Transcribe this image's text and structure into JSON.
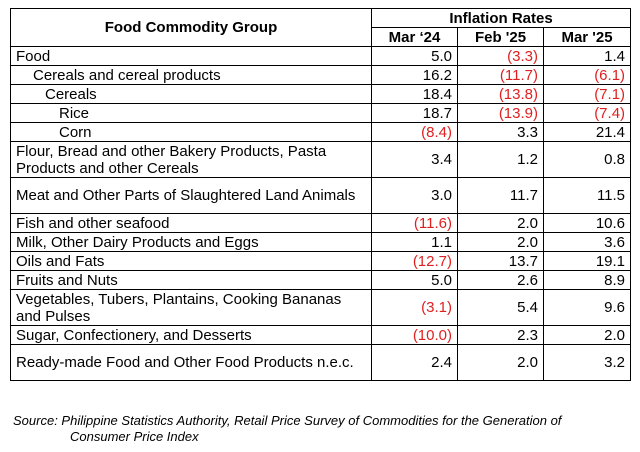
{
  "table": {
    "header": {
      "group_label": "Food Commodity Group",
      "rates_label": "Inflation Rates",
      "periods": [
        "Mar ‘24",
        "Feb '25",
        "Mar '25"
      ]
    },
    "rows": [
      {
        "label": "Food",
        "indent": 0,
        "values": [
          "5.0",
          "(3.3)",
          "1.4"
        ],
        "negative": [
          false,
          true,
          false
        ]
      },
      {
        "label": "Cereals and cereal products",
        "indent": 1,
        "values": [
          "16.2",
          "(11.7)",
          "(6.1)"
        ],
        "negative": [
          false,
          true,
          true
        ]
      },
      {
        "label": "Cereals",
        "indent": 2,
        "values": [
          "18.4",
          "(13.8)",
          "(7.1)"
        ],
        "negative": [
          false,
          true,
          true
        ]
      },
      {
        "label": "Rice",
        "indent": 3,
        "values": [
          "18.7",
          "(13.9)",
          "(7.4)"
        ],
        "negative": [
          false,
          true,
          true
        ]
      },
      {
        "label": "Corn",
        "indent": 3,
        "values": [
          "(8.4)",
          "3.3",
          "21.4"
        ],
        "negative": [
          true,
          false,
          false
        ]
      },
      {
        "label": "Flour, Bread and other Bakery Products, Pasta Products and other Cereals",
        "indent": 0,
        "tall": true,
        "values": [
          "3.4",
          "1.2",
          "0.8"
        ],
        "negative": [
          false,
          false,
          false
        ]
      },
      {
        "label": "Meat and Other Parts of Slaughtered Land Animals",
        "indent": 0,
        "tall": true,
        "values": [
          "3.0",
          "11.7",
          "11.5"
        ],
        "negative": [
          false,
          false,
          false
        ]
      },
      {
        "label": "Fish and other seafood",
        "indent": 0,
        "values": [
          "(11.6)",
          "2.0",
          "10.6"
        ],
        "negative": [
          true,
          false,
          false
        ]
      },
      {
        "label": "Milk, Other Dairy Products and Eggs",
        "indent": 0,
        "values": [
          "1.1",
          "2.0",
          "3.6"
        ],
        "negative": [
          false,
          false,
          false
        ]
      },
      {
        "label": "Oils and Fats",
        "indent": 0,
        "values": [
          "(12.7)",
          "13.7",
          "19.1"
        ],
        "negative": [
          true,
          false,
          false
        ]
      },
      {
        "label": "Fruits and Nuts",
        "indent": 0,
        "values": [
          "5.0",
          "2.6",
          "8.9"
        ],
        "negative": [
          false,
          false,
          false
        ]
      },
      {
        "label": "Vegetables, Tubers, Plantains, Cooking Bananas and Pulses",
        "indent": 0,
        "tall": true,
        "values": [
          "(3.1)",
          "5.4",
          "9.6"
        ],
        "negative": [
          true,
          false,
          false
        ]
      },
      {
        "label": "Sugar, Confectionery, and Desserts",
        "indent": 0,
        "values": [
          "(10.0)",
          "2.3",
          "2.0"
        ],
        "negative": [
          true,
          false,
          false
        ]
      },
      {
        "label": "Ready-made Food and Other Food Products n.e.c.",
        "indent": 0,
        "tall": true,
        "values": [
          "2.4",
          "2.0",
          "3.2"
        ],
        "negative": [
          false,
          false,
          false
        ]
      }
    ]
  },
  "source": {
    "line1": "Source: Philippine Statistics Authority, Retail Price Survey of Commodities for the Generation of",
    "line2": "Consumer Price Index"
  },
  "colors": {
    "negative": "#e02020",
    "text": "#000000",
    "border": "#000000"
  }
}
